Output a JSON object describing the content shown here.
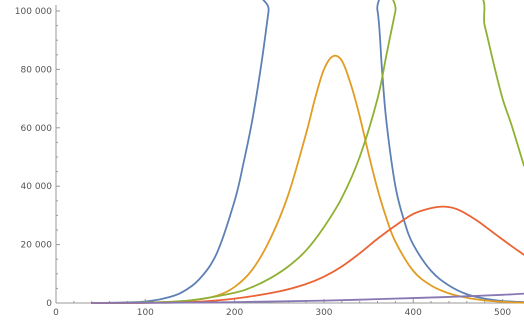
{
  "chart_data": {
    "type": "line",
    "title": "",
    "xlabel": "",
    "ylabel": "",
    "xlim": [
      0,
      524
    ],
    "ylim": [
      0,
      100000
    ],
    "x_ticks": [
      0,
      100,
      200,
      300,
      400,
      500
    ],
    "x_tick_labels": [
      "0",
      "100",
      "200",
      "300",
      "400",
      "500"
    ],
    "x_minor_step": 20,
    "y_ticks": [
      0,
      20000,
      40000,
      60000,
      80000,
      100000
    ],
    "y_tick_labels": [
      "0",
      "20 000",
      "40 000",
      "60 000",
      "80 000",
      "100 000"
    ],
    "y_minor_step": 5000,
    "grid": false,
    "legend": "none",
    "series": [
      {
        "color": "#5e81b5",
        "x": [
          40,
          80,
          100,
          120,
          140,
          160,
          180,
          200,
          210,
          220,
          230,
          238,
          240,
          350,
          360,
          365,
          370,
          380,
          390,
          400,
          420,
          440,
          460,
          480,
          500,
          524
        ],
        "y": [
          0,
          200,
          500,
          1500,
          3500,
          8000,
          17000,
          35000,
          48000,
          63000,
          82000,
          100000,
          105000,
          105000,
          100000,
          80000,
          62000,
          40000,
          28000,
          20000,
          11000,
          6000,
          3000,
          1500,
          700,
          300
        ]
      },
      {
        "color": "#e19c24",
        "x": [
          40,
          100,
          150,
          180,
          200,
          220,
          240,
          260,
          280,
          290,
          300,
          310,
          320,
          330,
          340,
          350,
          360,
          370,
          380,
          400,
          420,
          440,
          460,
          480,
          500,
          524
        ],
        "y": [
          0,
          100,
          800,
          2500,
          5500,
          11500,
          22000,
          37000,
          58000,
          70000,
          80000,
          84500,
          83000,
          75000,
          64000,
          51000,
          39000,
          29000,
          21000,
          11000,
          6000,
          3300,
          1800,
          900,
          400,
          100
        ]
      },
      {
        "color": "#8fb032",
        "x": [
          40,
          100,
          150,
          200,
          220,
          240,
          260,
          280,
          300,
          320,
          340,
          360,
          370,
          380,
          384,
          470,
          480,
          490,
          500,
          510,
          524
        ],
        "y": [
          0,
          150,
          900,
          3500,
          5500,
          8500,
          12500,
          18000,
          26000,
          36000,
          50000,
          70000,
          85000,
          100000,
          106000,
          106000,
          95000,
          82000,
          70000,
          61000,
          47000
        ]
      },
      {
        "color": "#eb6235",
        "x": [
          40,
          100,
          150,
          200,
          250,
          280,
          300,
          320,
          340,
          360,
          380,
          400,
          420,
          435,
          450,
          470,
          490,
          510,
          524
        ],
        "y": [
          0,
          50,
          300,
          1500,
          4000,
          6500,
          9000,
          12500,
          17000,
          22000,
          26500,
          30500,
          32500,
          33000,
          32000,
          28500,
          24000,
          19500,
          16500
        ]
      },
      {
        "color": "#8778b3",
        "x": [
          40,
          100,
          200,
          300,
          400,
          450,
          500,
          524
        ],
        "y": [
          0,
          50,
          300,
          800,
          1700,
          2200,
          2800,
          3200
        ]
      }
    ]
  }
}
